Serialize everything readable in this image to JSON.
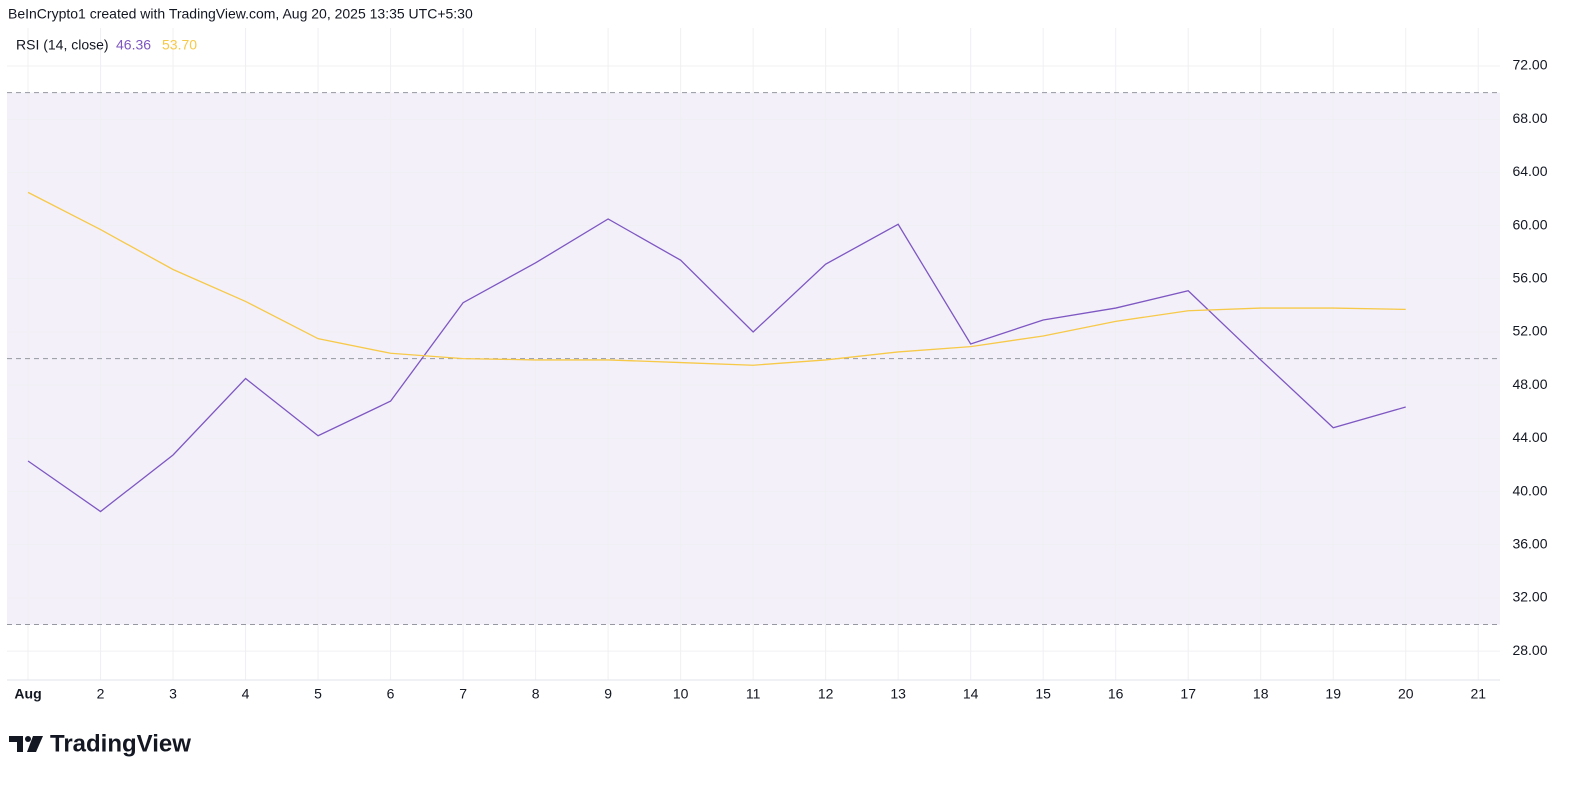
{
  "header": {
    "attribution": "BeInCrypto1 created with TradingView.com, Aug 20, 2025 13:35 UTC+5:30"
  },
  "footer": {
    "brand": "TradingView"
  },
  "chart_data": {
    "type": "line",
    "legend_title": "RSI (14, close)",
    "x": [
      1,
      2,
      3,
      4,
      5,
      6,
      7,
      8,
      9,
      10,
      11,
      12,
      13,
      14,
      15,
      16,
      17,
      18,
      19,
      20
    ],
    "series": [
      {
        "color": "#7e57c2",
        "readout": "46.36",
        "values": [
          42.3,
          38.5,
          42.75,
          48.5,
          44.2,
          46.8,
          54.2,
          57.2,
          60.5,
          57.4,
          52.0,
          57.1,
          60.1,
          51.1,
          52.9,
          53.8,
          55.1,
          49.9,
          44.8,
          46.36
        ]
      },
      {
        "color": "#f7c948",
        "readout": "53.70",
        "values": [
          62.5,
          59.7,
          56.7,
          54.3,
          51.5,
          50.4,
          50.0,
          49.9,
          49.9,
          49.7,
          49.5,
          49.9,
          50.5,
          50.9,
          51.7,
          52.8,
          53.6,
          53.8,
          53.8,
          53.7
        ]
      }
    ],
    "bands": {
      "upper": 70,
      "middle": 50,
      "lower": 30,
      "fill": "rgba(126,87,194,0.09)"
    },
    "xlim": [
      0.71,
      21.3
    ],
    "ylim": [
      25.83,
      74.86
    ],
    "xticks": [
      {
        "value": 1,
        "label": "Aug"
      },
      2,
      3,
      4,
      5,
      6,
      7,
      8,
      9,
      10,
      11,
      12,
      13,
      14,
      15,
      16,
      17,
      18,
      19,
      20,
      21
    ],
    "yticks": [
      {
        "value": 28,
        "label": "28.00"
      },
      {
        "value": 32,
        "label": "32.00"
      },
      {
        "value": 36,
        "label": "36.00"
      },
      {
        "value": 40,
        "label": "40.00"
      },
      {
        "value": 44,
        "label": "44.00"
      },
      {
        "value": 48,
        "label": "48.00"
      },
      {
        "value": 52,
        "label": "52.00"
      },
      {
        "value": 56,
        "label": "56.00"
      },
      {
        "value": 60,
        "label": "60.00"
      },
      {
        "value": 64,
        "label": "64.00"
      },
      {
        "value": 68,
        "label": "68.00"
      },
      {
        "value": 72,
        "label": "72.00"
      }
    ],
    "grid": true
  }
}
